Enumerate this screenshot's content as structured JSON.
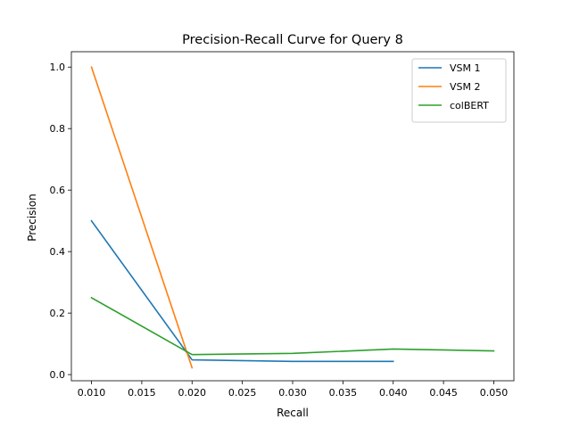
{
  "chart_data": {
    "type": "line",
    "title": "Precision-Recall Curve for Query 8",
    "xlabel": "Recall",
    "ylabel": "Precision",
    "xlim": [
      0.008,
      0.052
    ],
    "ylim": [
      -0.02,
      1.05
    ],
    "xticks": [
      "0.010",
      "0.015",
      "0.020",
      "0.025",
      "0.030",
      "0.035",
      "0.040",
      "0.045",
      "0.050"
    ],
    "xtick_values": [
      0.01,
      0.015,
      0.02,
      0.025,
      0.03,
      0.035,
      0.04,
      0.045,
      0.05
    ],
    "yticks": [
      "0.0",
      "0.2",
      "0.4",
      "0.6",
      "0.8",
      "1.0"
    ],
    "ytick_values": [
      0.0,
      0.2,
      0.4,
      0.6,
      0.8,
      1.0
    ],
    "grid": false,
    "legend_position": "top-right",
    "series": [
      {
        "name": "VSM 1",
        "color": "#1f77b4",
        "x": [
          0.01,
          0.02,
          0.03,
          0.04
        ],
        "y": [
          0.5,
          0.048,
          0.043,
          0.043
        ]
      },
      {
        "name": "VSM 2",
        "color": "#ff7f0e",
        "x": [
          0.01,
          0.02
        ],
        "y": [
          1.0,
          0.022
        ]
      },
      {
        "name": "colBERT",
        "color": "#2ca02c",
        "x": [
          0.01,
          0.02,
          0.03,
          0.04,
          0.05
        ],
        "y": [
          0.25,
          0.065,
          0.069,
          0.083,
          0.077
        ]
      }
    ]
  }
}
